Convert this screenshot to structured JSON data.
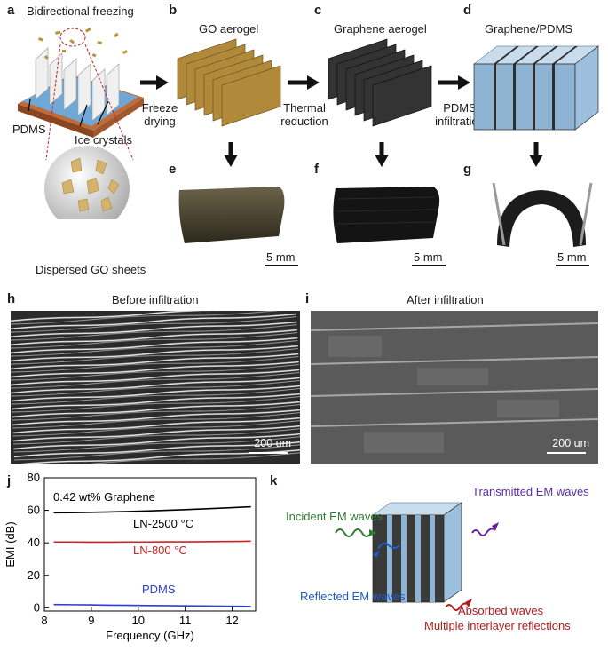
{
  "panels": {
    "a": {
      "label": "a",
      "title": "Bidirectional freezing",
      "pdms": "PDMS",
      "ice": "Ice crystals",
      "dispersed": "Dispersed GO sheets"
    },
    "b": {
      "label": "b",
      "title": "GO aerogel"
    },
    "c": {
      "label": "c",
      "title": "Graphene aerogel"
    },
    "d": {
      "label": "d",
      "title": "Graphene/PDMS"
    },
    "e": {
      "label": "e",
      "scale": "5 mm"
    },
    "f": {
      "label": "f",
      "scale": "5 mm"
    },
    "g": {
      "label": "g",
      "scale": "5 mm"
    },
    "h": {
      "label": "h",
      "title": "Before infiltration",
      "scale": "200 um"
    },
    "i": {
      "label": "i",
      "title": "After infiltration",
      "scale": "200 um"
    },
    "j": {
      "label": "j"
    },
    "k": {
      "label": "k",
      "transmitted": "Transmitted EM waves",
      "incident": "Incident EM waves",
      "reflected": "Reflected EM waves",
      "absorbed": "Absorbed waves",
      "multiple": "Multiple interlayer reflections"
    }
  },
  "steps": {
    "freeze_line1": "Freeze",
    "freeze_line2": "drying",
    "thermal_line1": "Thermal",
    "thermal_line2": "reduction",
    "pdms_line1": "PDMS",
    "pdms_line2": "infiltration"
  },
  "colors": {
    "go": "#b08a3a",
    "graphene": "#2e2e2e",
    "pdms": "#a9c7df",
    "arrow": "#111111"
  },
  "chart_data": {
    "type": "line",
    "xlabel": "Frequency (GHz)",
    "ylabel": "EMI (dB)",
    "xlim": [
      8,
      12.5
    ],
    "ylim": [
      -2,
      80
    ],
    "xticks": [
      8,
      9,
      10,
      11,
      12
    ],
    "yticks": [
      0,
      20,
      40,
      60,
      80
    ],
    "annotation": "0.42 wt% Graphene",
    "x": [
      8.2,
      8.6,
      9.0,
      9.4,
      9.8,
      10.2,
      10.6,
      11.0,
      11.4,
      11.8,
      12.2,
      12.4
    ],
    "series": [
      {
        "name": "LN-2500 °C",
        "color": "#000000",
        "values": [
          58.5,
          58.6,
          58.8,
          59.0,
          59.3,
          59.6,
          60.0,
          60.4,
          60.9,
          61.4,
          61.9,
          62.2
        ]
      },
      {
        "name": "LN-800 °C",
        "color": "#d22020",
        "values": [
          40.5,
          40.5,
          40.4,
          40.4,
          40.5,
          40.5,
          40.6,
          40.6,
          40.7,
          40.8,
          40.9,
          41.0
        ]
      },
      {
        "name": "PDMS",
        "color": "#2a3fd8",
        "values": [
          2.0,
          1.9,
          1.8,
          1.6,
          1.5,
          1.4,
          1.3,
          1.2,
          1.1,
          1.0,
          0.9,
          0.8
        ]
      }
    ]
  }
}
